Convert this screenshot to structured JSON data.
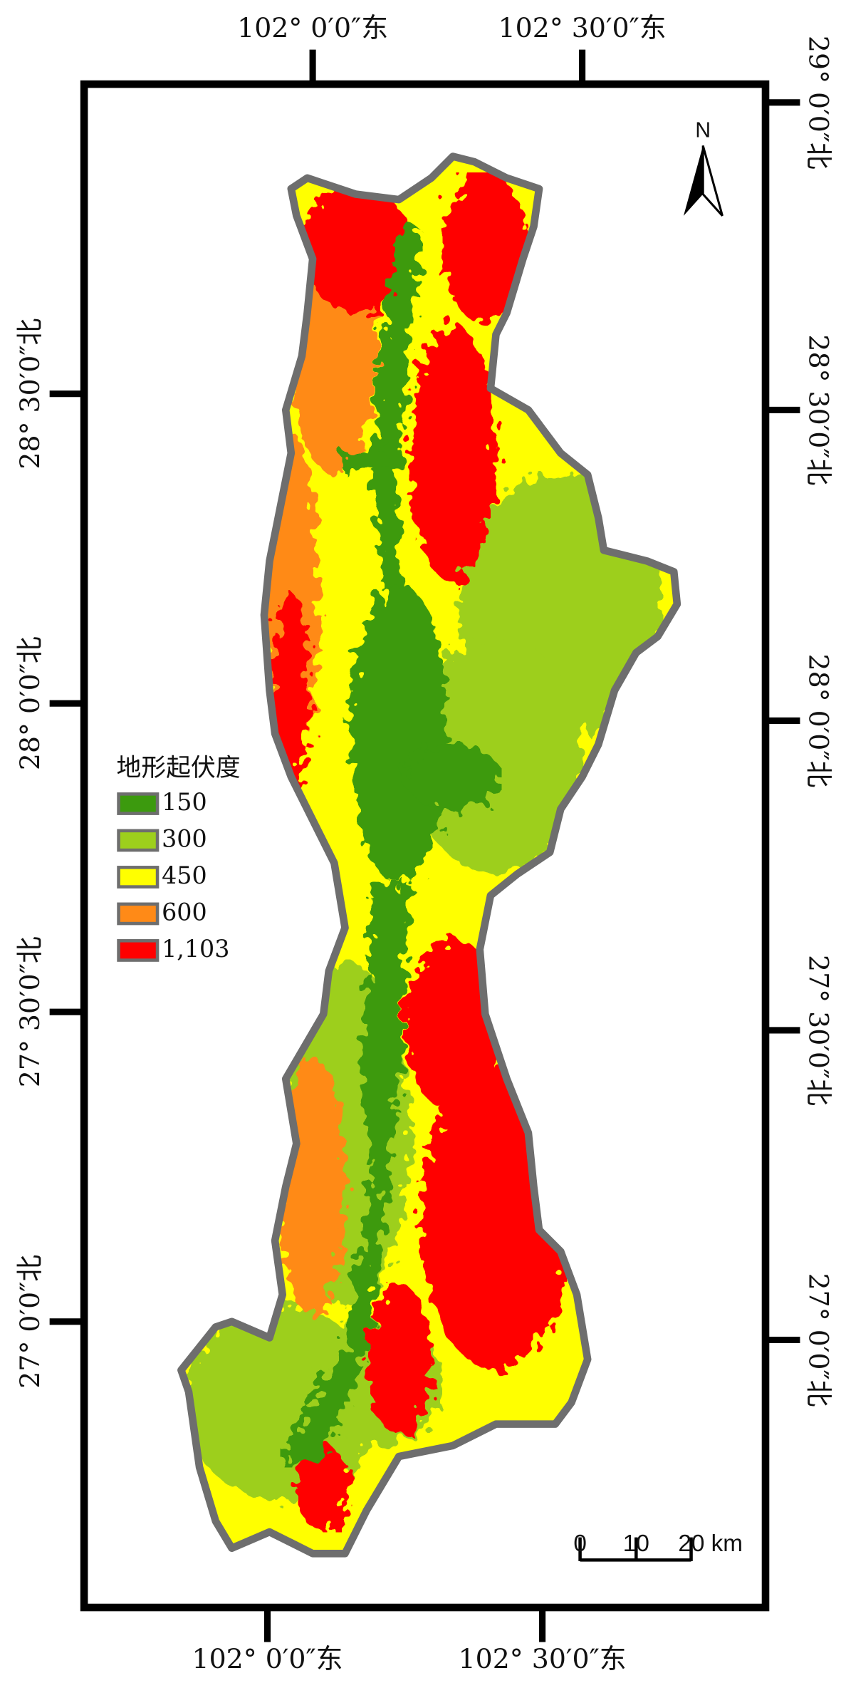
{
  "top_labels": [
    "102° 0′0″东",
    "102° 30′0″东"
  ],
  "bottom_labels": [
    "102° 0′0″东",
    "102° 30′0″东"
  ],
  "left_labels": [
    "28° 30′0″北",
    "28° 0′0″北",
    "27° 30′0″北",
    "27° 0′0″北"
  ],
  "right_labels": [
    "29° 0′0″北",
    "28° 30′0″北",
    "28° 0′0″北",
    "27° 30′0″北",
    "27° 0′0″北"
  ],
  "north": "N",
  "legend": {
    "title": "地形起伏度",
    "items": [
      {
        "label": "150",
        "color": "#3c9a0e"
      },
      {
        "label": "300",
        "color": "#9dcf1c"
      },
      {
        "label": "450",
        "color": "#ffff00"
      },
      {
        "label": "600",
        "color": "#ff8a17"
      },
      {
        "label": "1,103",
        "color": "#ff0000"
      }
    ]
  },
  "scale_bar": {
    "labels": [
      "0",
      "10",
      "20 km"
    ]
  }
}
